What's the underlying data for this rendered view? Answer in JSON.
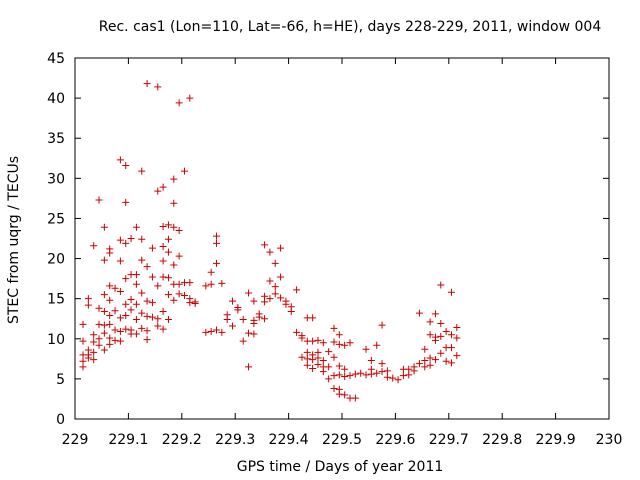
{
  "chart_data": {
    "type": "scatter",
    "title": "Rec. cas1 (Lon=110, Lat=-66, h=HE), days 228-229, 2011, window 004",
    "xlabel": "GPS time / Days of year 2011",
    "ylabel": "STEC from uqrg / TECUs",
    "xlim": [
      229,
      230
    ],
    "ylim": [
      0,
      45
    ],
    "xticks": [
      229,
      229.1,
      229.2,
      229.3,
      229.4,
      229.5,
      229.6,
      229.7,
      229.8,
      229.9,
      230
    ],
    "xtick_labels": [
      "229",
      "229.1",
      "229.2",
      "229.3",
      "229.4",
      "229.5",
      "229.6",
      "229.7",
      "229.8",
      "229.9",
      "230"
    ],
    "yticks": [
      0,
      5,
      10,
      15,
      20,
      25,
      30,
      35,
      40,
      45
    ],
    "ytick_labels": [
      "0",
      "5",
      "10",
      "15",
      "20",
      "25",
      "30",
      "35",
      "40",
      "45"
    ],
    "marker": "+",
    "color": "#cc0000",
    "grid": false,
    "series": [
      {
        "name": "STEC",
        "points": [
          [
            229.015,
            11.8
          ],
          [
            229.015,
            9.7
          ],
          [
            229.015,
            8.0
          ],
          [
            229.015,
            7.2
          ],
          [
            229.015,
            6.5
          ],
          [
            229.025,
            15.0
          ],
          [
            229.025,
            14.2
          ],
          [
            229.025,
            8.6
          ],
          [
            229.025,
            8.0
          ],
          [
            229.025,
            7.6
          ],
          [
            229.035,
            21.6
          ],
          [
            229.035,
            10.5
          ],
          [
            229.035,
            9.6
          ],
          [
            229.035,
            8.3
          ],
          [
            229.035,
            7.4
          ],
          [
            229.045,
            27.3
          ],
          [
            229.045,
            13.8
          ],
          [
            229.045,
            11.8
          ],
          [
            229.045,
            10.0
          ],
          [
            229.045,
            9.2
          ],
          [
            229.055,
            23.9
          ],
          [
            229.055,
            19.8
          ],
          [
            229.055,
            15.5
          ],
          [
            229.055,
            13.4
          ],
          [
            229.055,
            11.7
          ],
          [
            229.055,
            10.7
          ],
          [
            229.055,
            8.6
          ],
          [
            229.065,
            21.2
          ],
          [
            229.065,
            20.7
          ],
          [
            229.065,
            16.6
          ],
          [
            229.065,
            14.8
          ],
          [
            229.065,
            12.9
          ],
          [
            229.065,
            11.8
          ],
          [
            229.065,
            10.1
          ],
          [
            229.065,
            9.3
          ],
          [
            229.075,
            16.3
          ],
          [
            229.075,
            13.5
          ],
          [
            229.075,
            11.1
          ],
          [
            229.075,
            9.8
          ],
          [
            229.085,
            32.3
          ],
          [
            229.085,
            22.3
          ],
          [
            229.085,
            19.7
          ],
          [
            229.085,
            15.9
          ],
          [
            229.085,
            12.6
          ],
          [
            229.085,
            10.9
          ],
          [
            229.085,
            9.7
          ],
          [
            229.095,
            31.6
          ],
          [
            229.095,
            27.0
          ],
          [
            229.095,
            21.9
          ],
          [
            229.095,
            17.5
          ],
          [
            229.095,
            14.3
          ],
          [
            229.095,
            12.9
          ],
          [
            229.095,
            11.2
          ],
          [
            229.105,
            22.5
          ],
          [
            229.105,
            18.0
          ],
          [
            229.105,
            14.9
          ],
          [
            229.105,
            13.6
          ],
          [
            229.105,
            11.1
          ],
          [
            229.105,
            10.6
          ],
          [
            229.115,
            23.9
          ],
          [
            229.115,
            18.0
          ],
          [
            229.115,
            16.8
          ],
          [
            229.115,
            14.3
          ],
          [
            229.115,
            12.4
          ],
          [
            229.115,
            10.6
          ],
          [
            229.125,
            30.9
          ],
          [
            229.125,
            22.4
          ],
          [
            229.125,
            19.8
          ],
          [
            229.125,
            15.7
          ],
          [
            229.125,
            13.2
          ],
          [
            229.125,
            11.3
          ],
          [
            229.135,
            41.8
          ],
          [
            229.135,
            19.0
          ],
          [
            229.135,
            14.7
          ],
          [
            229.135,
            12.8
          ],
          [
            229.135,
            11.0
          ],
          [
            229.135,
            9.9
          ],
          [
            229.145,
            21.3
          ],
          [
            229.145,
            17.7
          ],
          [
            229.145,
            14.5
          ],
          [
            229.145,
            12.7
          ],
          [
            229.155,
            41.4
          ],
          [
            229.155,
            28.4
          ],
          [
            229.155,
            16.6
          ],
          [
            229.155,
            12.5
          ],
          [
            229.155,
            11.6
          ],
          [
            229.165,
            28.9
          ],
          [
            229.165,
            24.0
          ],
          [
            229.165,
            21.5
          ],
          [
            229.165,
            19.7
          ],
          [
            229.165,
            17.7
          ],
          [
            229.165,
            13.4
          ],
          [
            229.165,
            11.2
          ],
          [
            229.175,
            24.2
          ],
          [
            229.175,
            22.4
          ],
          [
            229.175,
            20.8
          ],
          [
            229.175,
            17.6
          ],
          [
            229.175,
            15.5
          ],
          [
            229.175,
            12.4
          ],
          [
            229.185,
            29.9
          ],
          [
            229.185,
            26.9
          ],
          [
            229.185,
            23.9
          ],
          [
            229.185,
            19.2
          ],
          [
            229.185,
            16.8
          ],
          [
            229.185,
            14.8
          ],
          [
            229.195,
            39.4
          ],
          [
            229.195,
            23.5
          ],
          [
            229.195,
            20.3
          ],
          [
            229.195,
            16.8
          ],
          [
            229.195,
            15.6
          ],
          [
            229.205,
            30.9
          ],
          [
            229.205,
            17.0
          ],
          [
            229.205,
            15.4
          ],
          [
            229.215,
            40.0
          ],
          [
            229.215,
            17.0
          ],
          [
            229.215,
            15.0
          ],
          [
            229.215,
            14.5
          ],
          [
            229.225,
            14.6
          ],
          [
            229.225,
            14.4
          ],
          [
            229.245,
            16.6
          ],
          [
            229.245,
            10.8
          ],
          [
            229.255,
            18.3
          ],
          [
            229.255,
            16.8
          ],
          [
            229.255,
            10.9
          ],
          [
            229.265,
            22.8
          ],
          [
            229.265,
            21.9
          ],
          [
            229.265,
            19.4
          ],
          [
            229.265,
            11.1
          ],
          [
            229.275,
            16.9
          ],
          [
            229.275,
            10.8
          ],
          [
            229.285,
            13.0
          ],
          [
            229.285,
            12.4
          ],
          [
            229.295,
            14.7
          ],
          [
            229.295,
            11.6
          ],
          [
            229.305,
            13.9
          ],
          [
            229.305,
            13.6
          ],
          [
            229.315,
            12.4
          ],
          [
            229.315,
            9.7
          ],
          [
            229.325,
            15.7
          ],
          [
            229.325,
            10.7
          ],
          [
            229.325,
            6.5
          ],
          [
            229.335,
            14.7
          ],
          [
            229.335,
            12.3
          ],
          [
            229.335,
            11.9
          ],
          [
            229.335,
            10.6
          ],
          [
            229.345,
            13.1
          ],
          [
            229.345,
            12.7
          ],
          [
            229.355,
            21.7
          ],
          [
            229.355,
            15.3
          ],
          [
            229.355,
            14.6
          ],
          [
            229.355,
            12.5
          ],
          [
            229.365,
            20.8
          ],
          [
            229.365,
            17.2
          ],
          [
            229.365,
            15.0
          ],
          [
            229.375,
            19.4
          ],
          [
            229.375,
            16.5
          ],
          [
            229.375,
            15.6
          ],
          [
            229.385,
            21.3
          ],
          [
            229.385,
            17.7
          ],
          [
            229.385,
            15.1
          ],
          [
            229.395,
            14.7
          ],
          [
            229.395,
            14.3
          ],
          [
            229.405,
            14.0
          ],
          [
            229.405,
            13.4
          ],
          [
            229.415,
            16.1
          ],
          [
            229.415,
            10.8
          ],
          [
            229.425,
            10.4
          ],
          [
            229.425,
            10.1
          ],
          [
            229.425,
            7.7
          ],
          [
            229.435,
            12.6
          ],
          [
            229.435,
            9.7
          ],
          [
            229.435,
            8.3
          ],
          [
            229.435,
            7.5
          ],
          [
            229.435,
            6.7
          ],
          [
            229.445,
            12.6
          ],
          [
            229.445,
            9.7
          ],
          [
            229.445,
            8.0
          ],
          [
            229.445,
            7.4
          ],
          [
            229.445,
            6.3
          ],
          [
            229.455,
            9.8
          ],
          [
            229.455,
            8.3
          ],
          [
            229.455,
            7.6
          ],
          [
            229.455,
            6.8
          ],
          [
            229.465,
            9.5
          ],
          [
            229.465,
            7.3
          ],
          [
            229.465,
            6.5
          ],
          [
            229.465,
            5.9
          ],
          [
            229.475,
            8.4
          ],
          [
            229.475,
            6.5
          ],
          [
            229.475,
            5.0
          ],
          [
            229.485,
            11.3
          ],
          [
            229.485,
            9.6
          ],
          [
            229.485,
            7.7
          ],
          [
            229.485,
            5.4
          ],
          [
            229.485,
            3.8
          ],
          [
            229.495,
            10.5
          ],
          [
            229.495,
            9.3
          ],
          [
            229.495,
            6.6
          ],
          [
            229.495,
            5.5
          ],
          [
            229.495,
            3.7
          ],
          [
            229.495,
            3.1
          ],
          [
            229.505,
            9.2
          ],
          [
            229.505,
            6.2
          ],
          [
            229.505,
            5.3
          ],
          [
            229.505,
            3.0
          ],
          [
            229.515,
            9.5
          ],
          [
            229.515,
            5.4
          ],
          [
            229.515,
            2.6
          ],
          [
            229.525,
            5.6
          ],
          [
            229.525,
            2.6
          ],
          [
            229.535,
            5.7
          ],
          [
            229.545,
            8.7
          ],
          [
            229.545,
            5.5
          ],
          [
            229.555,
            7.3
          ],
          [
            229.555,
            6.2
          ],
          [
            229.555,
            5.6
          ],
          [
            229.565,
            9.2
          ],
          [
            229.565,
            5.7
          ],
          [
            229.575,
            11.7
          ],
          [
            229.575,
            6.9
          ],
          [
            229.575,
            5.9
          ],
          [
            229.585,
            6.0
          ],
          [
            229.585,
            5.2
          ],
          [
            229.595,
            5.1
          ],
          [
            229.605,
            4.9
          ],
          [
            229.615,
            6.2
          ],
          [
            229.615,
            5.4
          ],
          [
            229.625,
            6.2
          ],
          [
            229.625,
            5.5
          ],
          [
            229.635,
            6.5
          ],
          [
            229.635,
            6.0
          ],
          [
            229.645,
            13.2
          ],
          [
            229.645,
            6.9
          ],
          [
            229.655,
            8.7
          ],
          [
            229.655,
            7.3
          ],
          [
            229.655,
            6.5
          ],
          [
            229.665,
            12.1
          ],
          [
            229.665,
            10.5
          ],
          [
            229.665,
            7.6
          ],
          [
            229.665,
            6.7
          ],
          [
            229.675,
            13.1
          ],
          [
            229.675,
            10.2
          ],
          [
            229.675,
            9.8
          ],
          [
            229.675,
            7.4
          ],
          [
            229.685,
            16.7
          ],
          [
            229.685,
            11.9
          ],
          [
            229.685,
            10.3
          ],
          [
            229.685,
            8.2
          ],
          [
            229.695,
            10.9
          ],
          [
            229.695,
            8.9
          ],
          [
            229.695,
            7.2
          ],
          [
            229.705,
            15.8
          ],
          [
            229.705,
            10.5
          ],
          [
            229.705,
            8.9
          ],
          [
            229.705,
            7.0
          ],
          [
            229.715,
            11.4
          ],
          [
            229.715,
            10.1
          ],
          [
            229.715,
            7.9
          ]
        ]
      }
    ]
  }
}
